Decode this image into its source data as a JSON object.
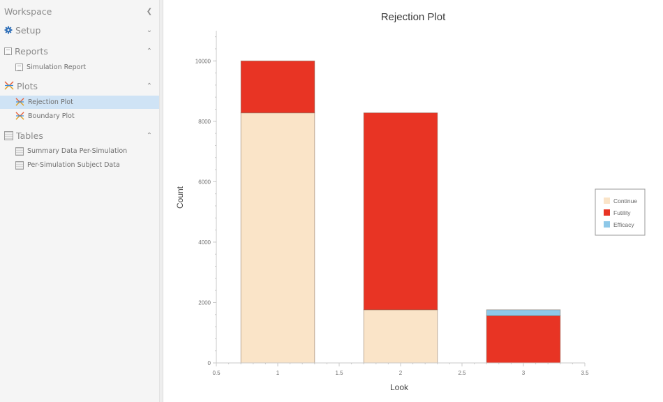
{
  "sidebar": {
    "workspace_title": "Workspace",
    "collapse_icon": "chevron-left-icon",
    "sections": [
      {
        "label": "Setup",
        "icon": "gear-icon",
        "expanded": false
      },
      {
        "label": "Reports",
        "icon": "report-icon",
        "expanded": true,
        "items": [
          {
            "label": "Simulation Report",
            "icon": "report-icon",
            "selected": false
          }
        ]
      },
      {
        "label": "Plots",
        "icon": "plot-icon",
        "expanded": true,
        "items": [
          {
            "label": "Rejection Plot",
            "icon": "plot-icon",
            "selected": true
          },
          {
            "label": "Boundary Plot",
            "icon": "plot-icon",
            "selected": false
          }
        ]
      },
      {
        "label": "Tables",
        "icon": "table-icon",
        "expanded": true,
        "items": [
          {
            "label": "Summary Data Per-Simulation",
            "icon": "table-icon",
            "selected": false
          },
          {
            "label": "Per-Simulation Subject Data",
            "icon": "table-icon",
            "selected": false
          }
        ]
      }
    ]
  },
  "colors": {
    "continue": "#fae4c8",
    "futility": "#e83424",
    "efficacy": "#8ec8e8",
    "selection": "#cfe3f5",
    "bar_border": "#b09a85"
  },
  "chart_data": {
    "type": "bar",
    "stacked": true,
    "title": "Rejection Plot",
    "xlabel": "Look",
    "ylabel": "Count",
    "categories": [
      1,
      2,
      3
    ],
    "series": [
      {
        "name": "Continue",
        "color": "#fae4c8",
        "values": [
          8280,
          1760,
          0
        ]
      },
      {
        "name": "Futility",
        "color": "#e83424",
        "values": [
          1720,
          6520,
          1560
        ]
      },
      {
        "name": "Efficacy",
        "color": "#8ec8e8",
        "values": [
          0,
          0,
          200
        ]
      }
    ],
    "bar_width": 0.6,
    "xlim": [
      0.5,
      3.5
    ],
    "ylim": [
      0,
      11000
    ],
    "xticks": [
      "0.5",
      "1",
      "1.5",
      "2",
      "2.5",
      "3",
      "3.5"
    ],
    "yticks": [
      "0",
      "2000",
      "4000",
      "6000",
      "8000",
      "10000"
    ],
    "y_minor_step": 400,
    "x_minor_step": 0.1,
    "grid": false,
    "legend_position": "right"
  }
}
